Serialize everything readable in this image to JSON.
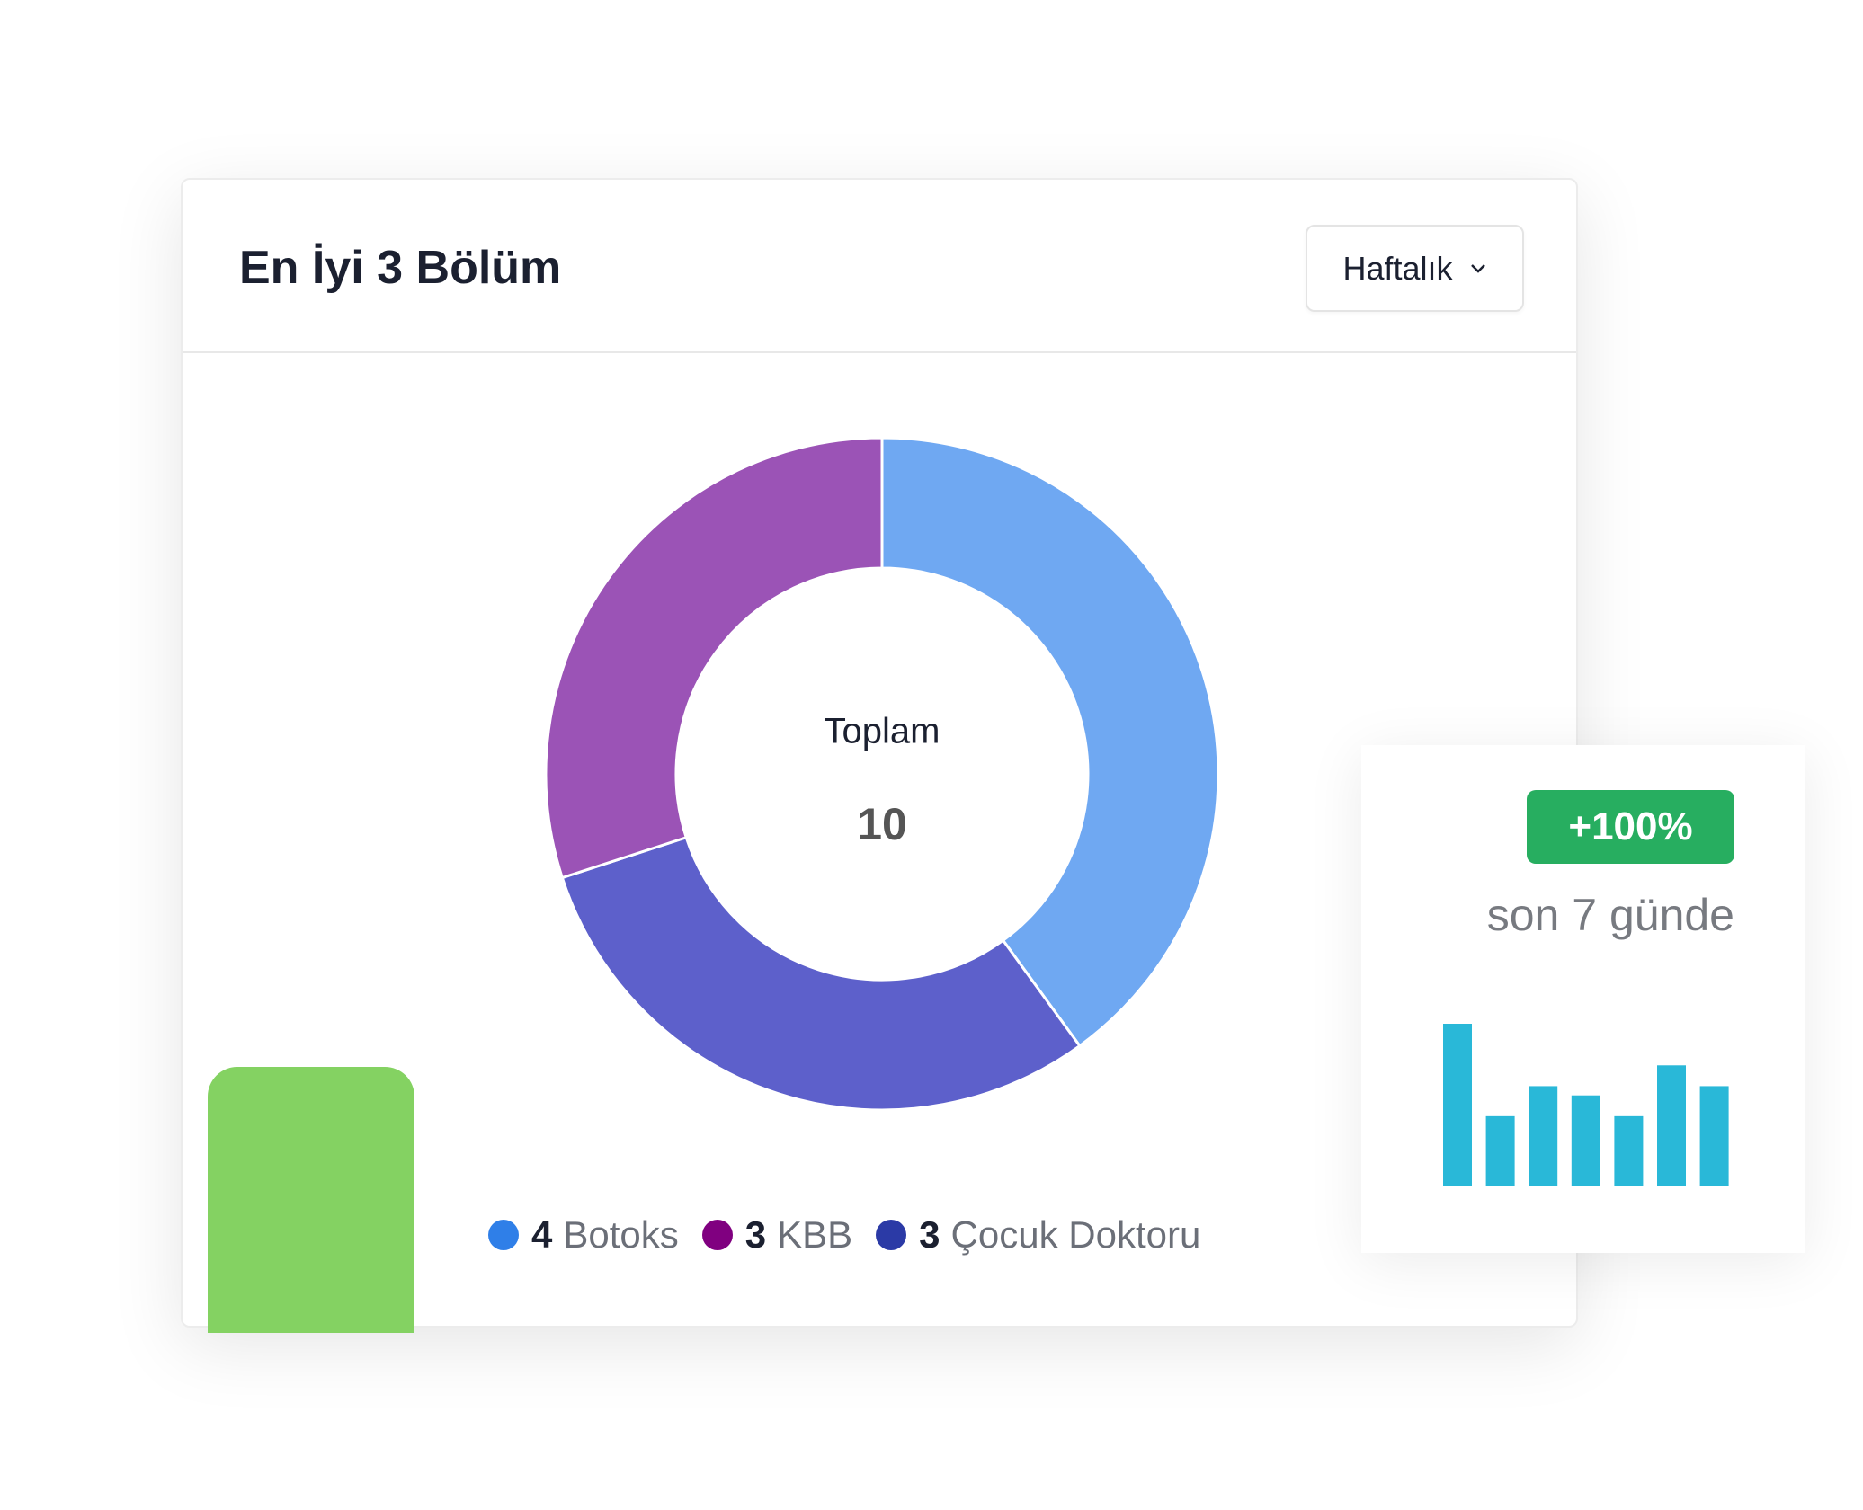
{
  "chart_data": [
    {
      "type": "donut",
      "title": "En İyi 3 Bölüm",
      "period": "Haftalık",
      "center_label": "Toplam",
      "total": 10,
      "series": [
        {
          "name": "Botoks",
          "values": [
            4
          ],
          "color": "#6fa8f2",
          "marker_color": "#2f7fe8"
        },
        {
          "name": "KBB",
          "values": [
            3
          ],
          "color": "#9b53b6",
          "marker_color": "#800080"
        },
        {
          "name": "Çocuk Doktoru",
          "values": [
            3
          ],
          "color": "#5d60cb",
          "marker_color": "#2b3aa6"
        }
      ],
      "slice_order": [
        0,
        2,
        1
      ]
    },
    {
      "type": "bar",
      "badge": "+100%",
      "subtitle": "son 7 günde",
      "color": "#29b8d8",
      "values": [
        7,
        3,
        4.3,
        3.9,
        3,
        5.2,
        4.3
      ],
      "ylim": [
        0,
        7
      ]
    }
  ]
}
